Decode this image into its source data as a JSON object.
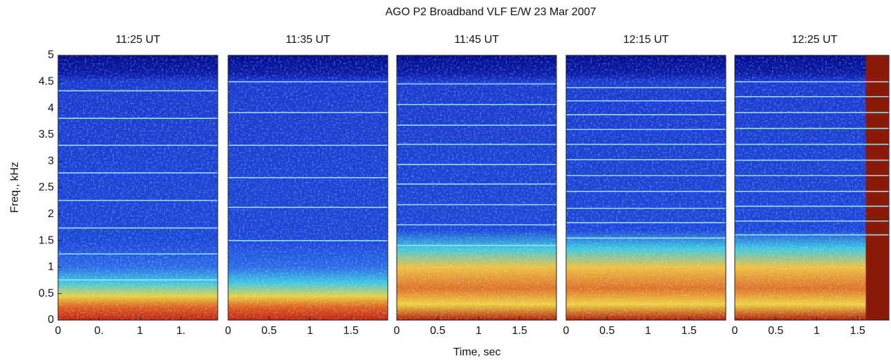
{
  "chart_data": {
    "type": "spectrogram",
    "title": "AGO P2 Broadband VLF E/W     23 Mar 2007",
    "xlabel": "Time, sec",
    "ylabel": "Freq., kHz",
    "ylim": [
      0,
      5
    ],
    "yticks": [
      0,
      0.5,
      1,
      1.5,
      2,
      2.5,
      3,
      3.5,
      4,
      4.5,
      5
    ],
    "panels": [
      {
        "title": "11:25 UT",
        "xlim": [
          0,
          1.95
        ],
        "xticks": [
          0,
          {
            "value": 0.5,
            "label": "0."
          },
          1,
          {
            "value": 1.5,
            "label": "1."
          }
        ],
        "tones": [
          0.76,
          1.25,
          1.74,
          2.26,
          2.78,
          3.3,
          3.81,
          4.33
        ]
      },
      {
        "title": "11:35 UT",
        "xlim": [
          0,
          1.95
        ],
        "xticks": [
          0,
          0.5,
          1,
          1.5
        ],
        "tones": [
          1.5,
          2.13,
          2.69,
          3.3,
          3.92,
          4.5
        ]
      },
      {
        "title": "11:45 UT",
        "xlim": [
          0,
          1.95
        ],
        "xticks": [
          0,
          0.5,
          1,
          1.5
        ],
        "tones": [
          1.41,
          1.8,
          2.18,
          2.57,
          2.94,
          3.32,
          3.68,
          4.07,
          4.46
        ]
      },
      {
        "title": "12:15 UT",
        "xlim": [
          0,
          1.95
        ],
        "xticks": [
          0,
          0.5,
          1,
          1.5
        ],
        "tones": [
          1.55,
          1.84,
          2.11,
          2.43,
          2.73,
          3.03,
          3.32,
          3.6,
          3.88,
          4.14,
          4.39
        ]
      },
      {
        "title": "12:25 UT",
        "xlim": [
          0,
          1.95
        ],
        "xticks": [
          0,
          0.5,
          1,
          1.5
        ],
        "tones": [
          1.61,
          1.87,
          2.15,
          2.43,
          2.73,
          3.02,
          3.32,
          3.62,
          3.92,
          4.22,
          4.5
        ]
      }
    ]
  }
}
